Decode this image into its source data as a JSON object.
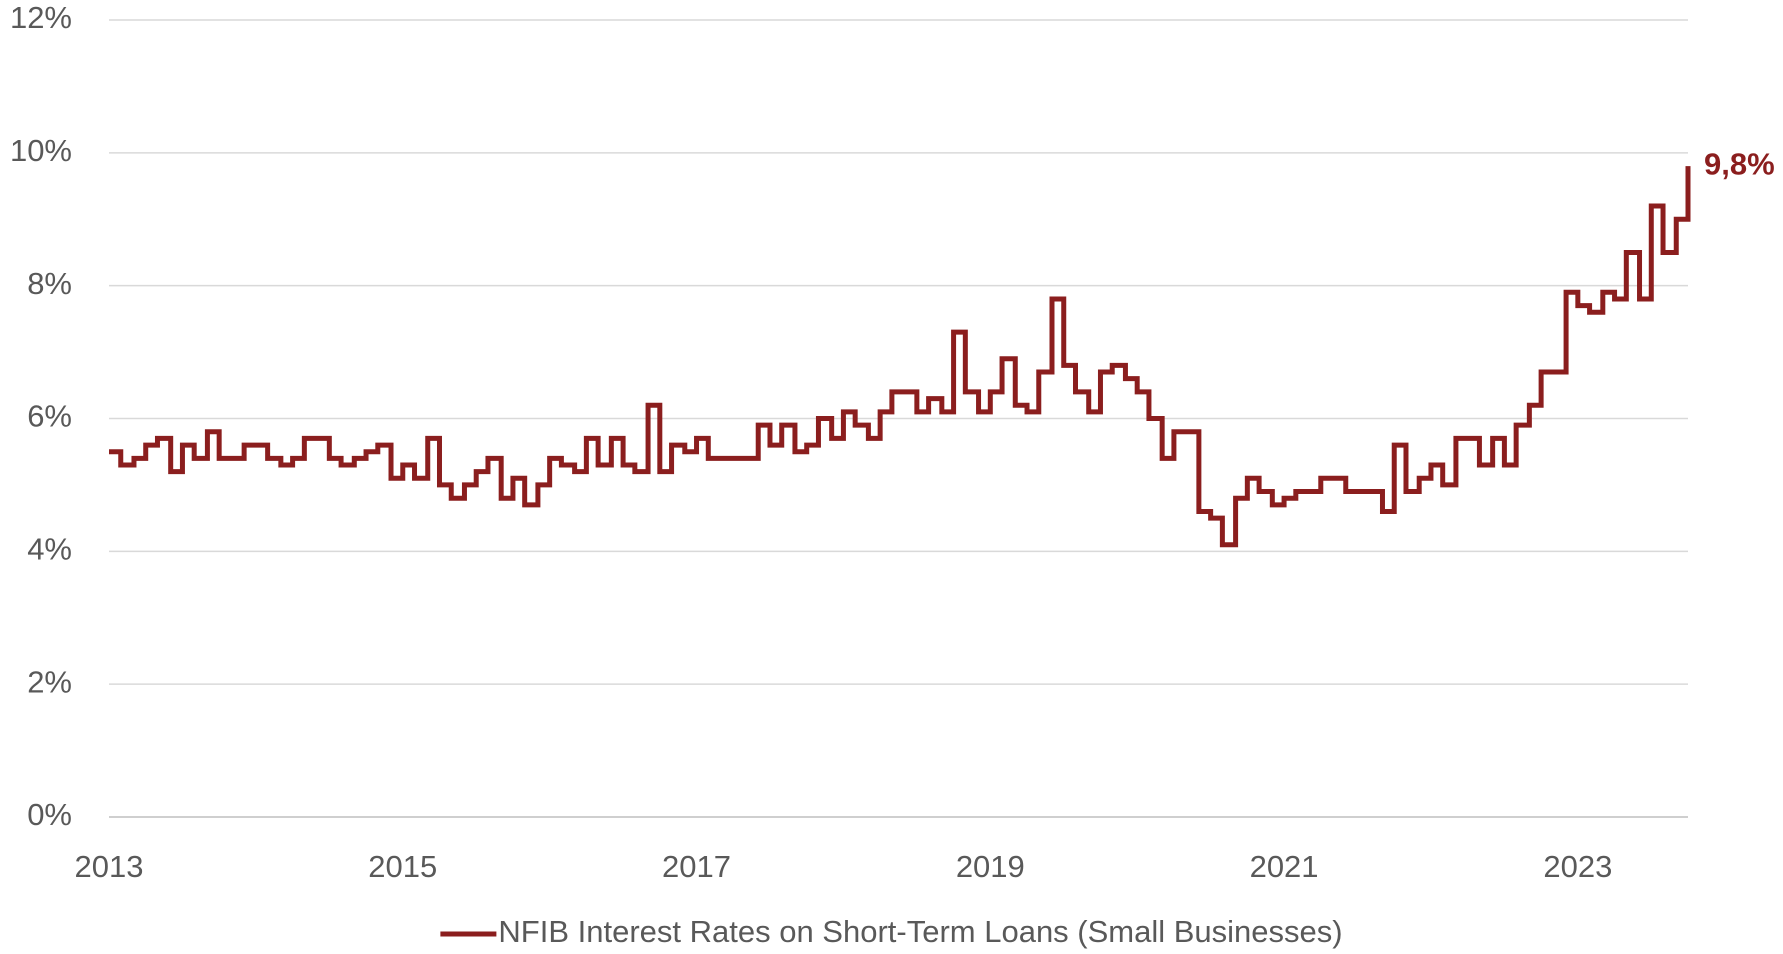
{
  "chart_data": {
    "type": "line",
    "step": true,
    "x": [
      2013,
      2013.08,
      2013.17,
      2013.25,
      2013.33,
      2013.42,
      2013.5,
      2013.58,
      2013.67,
      2013.75,
      2013.83,
      2013.92,
      2014,
      2014.08,
      2014.17,
      2014.25,
      2014.33,
      2014.42,
      2014.5,
      2014.58,
      2014.67,
      2014.75,
      2014.83,
      2014.92,
      2015,
      2015.08,
      2015.17,
      2015.25,
      2015.33,
      2015.42,
      2015.5,
      2015.58,
      2015.67,
      2015.75,
      2015.83,
      2015.92,
      2016,
      2016.08,
      2016.17,
      2016.25,
      2016.33,
      2016.42,
      2016.5,
      2016.58,
      2016.67,
      2016.75,
      2016.83,
      2016.92,
      2017,
      2017.08,
      2017.17,
      2017.25,
      2017.33,
      2017.42,
      2017.5,
      2017.58,
      2017.67,
      2017.75,
      2017.83,
      2017.92,
      2018,
      2018.08,
      2018.17,
      2018.25,
      2018.33,
      2018.42,
      2018.5,
      2018.58,
      2018.67,
      2018.75,
      2018.83,
      2018.92,
      2019,
      2019.08,
      2019.17,
      2019.25,
      2019.33,
      2019.42,
      2019.5,
      2019.58,
      2019.67,
      2019.75,
      2019.83,
      2019.92,
      2020,
      2020.08,
      2020.17,
      2020.25,
      2020.33,
      2020.42,
      2020.5,
      2020.58,
      2020.67,
      2020.75,
      2020.83,
      2020.92,
      2021,
      2021.08,
      2021.17,
      2021.25,
      2021.33,
      2021.42,
      2021.5,
      2021.58,
      2021.67,
      2021.75,
      2021.83,
      2021.92,
      2022,
      2022.08,
      2022.17,
      2022.25,
      2022.33,
      2022.42,
      2022.5,
      2022.58,
      2022.67,
      2022.75,
      2022.83,
      2022.92,
      2023,
      2023.08,
      2023.17,
      2023.25,
      2023.33,
      2023.42,
      2023.5,
      2023.58,
      2023.67,
      2023.75
    ],
    "series": [
      {
        "name": "NFIB Interest Rates on Short-Term Loans (Small Businesses)",
        "color": "#8B1E1E",
        "values": [
          5.5,
          5.3,
          5.4,
          5.6,
          5.7,
          5.2,
          5.6,
          5.4,
          5.8,
          5.4,
          5.4,
          5.6,
          5.6,
          5.4,
          5.3,
          5.4,
          5.7,
          5.7,
          5.4,
          5.3,
          5.4,
          5.5,
          5.6,
          5.1,
          5.3,
          5.1,
          5.7,
          5.0,
          4.8,
          5.0,
          5.2,
          5.4,
          4.8,
          5.1,
          4.7,
          5.0,
          5.4,
          5.3,
          5.2,
          5.7,
          5.3,
          5.7,
          5.3,
          5.2,
          6.2,
          5.2,
          5.6,
          5.5,
          5.7,
          5.4,
          5.4,
          5.4,
          5.4,
          5.9,
          5.6,
          5.9,
          5.5,
          5.6,
          6.0,
          5.7,
          6.1,
          5.9,
          5.7,
          6.1,
          6.4,
          6.4,
          6.1,
          6.3,
          6.1,
          7.3,
          6.4,
          6.1,
          6.4,
          6.9,
          6.2,
          6.1,
          6.7,
          7.8,
          6.8,
          6.4,
          6.1,
          6.7,
          6.8,
          6.6,
          6.4,
          6.0,
          5.4,
          5.8,
          5.8,
          4.6,
          4.5,
          4.1,
          4.8,
          5.1,
          4.9,
          4.7,
          4.8,
          4.9,
          4.9,
          5.1,
          5.1,
          4.9,
          4.9,
          4.9,
          4.6,
          5.6,
          4.9,
          5.1,
          5.3,
          5.0,
          5.7,
          5.7,
          5.3,
          5.7,
          5.3,
          5.9,
          6.2,
          6.7,
          6.7,
          7.9,
          7.7,
          7.6,
          7.9,
          7.8,
          8.5,
          7.8,
          9.2,
          8.5,
          9.0,
          9.8
        ]
      }
    ],
    "annotations": [
      {
        "text": "9,8%",
        "x": 2023.75,
        "y": 9.8
      }
    ],
    "xlim": [
      2013,
      2023.75
    ],
    "xticks": [
      2013,
      2015,
      2017,
      2019,
      2021,
      2023
    ],
    "ylim": [
      0,
      12
    ],
    "yticks": [
      {
        "value": 0,
        "label": "0%"
      },
      {
        "value": 2,
        "label": "2%"
      },
      {
        "value": 4,
        "label": "4%"
      },
      {
        "value": 6,
        "label": "6%"
      },
      {
        "value": 8,
        "label": "8%"
      },
      {
        "value": 10,
        "label": "10%"
      },
      {
        "value": 12,
        "label": "12%"
      }
    ],
    "grid": true,
    "legend": "bottom"
  }
}
